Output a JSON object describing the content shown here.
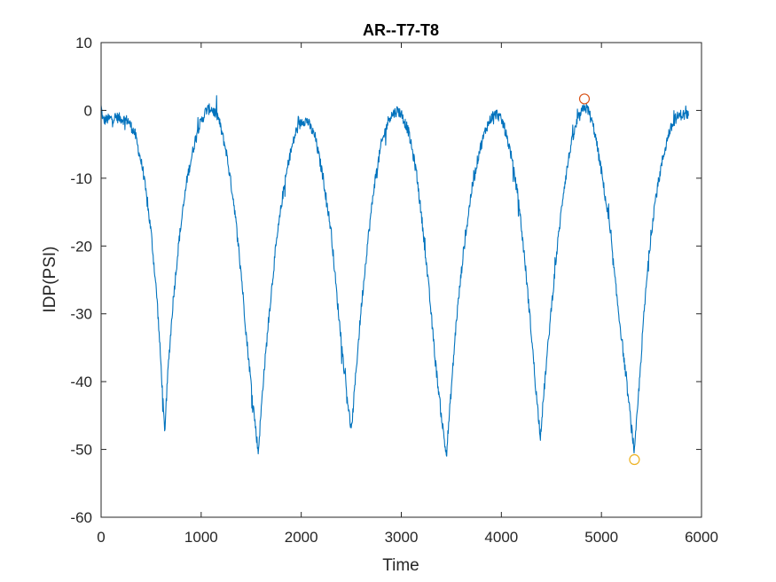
{
  "chart_data": {
    "type": "line",
    "title": "AR--T7-T8",
    "xlabel": "Time",
    "ylabel": "IDP(PSI)",
    "xlim": [
      0,
      6000
    ],
    "ylim": [
      -60,
      10
    ],
    "xticks": [
      0,
      1000,
      2000,
      3000,
      4000,
      5000,
      6000
    ],
    "yticks": [
      10,
      0,
      -10,
      -20,
      -30,
      -40,
      -50,
      -60
    ],
    "xtick_labels": [
      "0",
      "1000",
      "2000",
      "3000",
      "4000",
      "5000",
      "6000"
    ],
    "ytick_labels": [
      "10",
      "0",
      "-10",
      "-20",
      "-30",
      "-40",
      "-50",
      "-60"
    ],
    "grid": false,
    "box": true,
    "series": [
      {
        "color": "#0072BD",
        "keypoints": [
          [
            0,
            0.5
          ],
          [
            20,
            -1.5
          ],
          [
            150,
            -1.0
          ],
          [
            270,
            -1.5
          ],
          [
            340,
            -3.5
          ],
          [
            420,
            -9
          ],
          [
            500,
            -18
          ],
          [
            560,
            -28
          ],
          [
            600,
            -38
          ],
          [
            635,
            -47.5
          ],
          [
            670,
            -38
          ],
          [
            720,
            -28
          ],
          [
            780,
            -19
          ],
          [
            860,
            -10
          ],
          [
            960,
            -3
          ],
          [
            1050,
            0
          ],
          [
            1100,
            0.3
          ],
          [
            1170,
            -1
          ],
          [
            1250,
            -6
          ],
          [
            1330,
            -14
          ],
          [
            1400,
            -24
          ],
          [
            1450,
            -33
          ],
          [
            1510,
            -42
          ],
          [
            1570,
            -50.5
          ],
          [
            1620,
            -40
          ],
          [
            1680,
            -30
          ],
          [
            1740,
            -21
          ],
          [
            1810,
            -13
          ],
          [
            1880,
            -7
          ],
          [
            1950,
            -3
          ],
          [
            2010,
            -1.5
          ],
          [
            2060,
            -1.5
          ],
          [
            2140,
            -4
          ],
          [
            2220,
            -10
          ],
          [
            2300,
            -18
          ],
          [
            2360,
            -28
          ],
          [
            2420,
            -37
          ],
          [
            2500,
            -47.5
          ],
          [
            2550,
            -38
          ],
          [
            2600,
            -29
          ],
          [
            2660,
            -20
          ],
          [
            2730,
            -11
          ],
          [
            2800,
            -5
          ],
          [
            2880,
            -1
          ],
          [
            2960,
            0
          ],
          [
            3000,
            -0.5
          ],
          [
            3070,
            -3
          ],
          [
            3150,
            -9
          ],
          [
            3220,
            -18
          ],
          [
            3280,
            -27
          ],
          [
            3340,
            -37
          ],
          [
            3400,
            -45
          ],
          [
            3450,
            -51
          ],
          [
            3500,
            -41
          ],
          [
            3550,
            -31
          ],
          [
            3620,
            -21
          ],
          [
            3700,
            -12
          ],
          [
            3780,
            -6
          ],
          [
            3850,
            -2.5
          ],
          [
            3910,
            -0.8
          ],
          [
            3960,
            -0.5
          ],
          [
            4020,
            -2
          ],
          [
            4090,
            -6
          ],
          [
            4170,
            -13
          ],
          [
            4240,
            -23
          ],
          [
            4300,
            -33
          ],
          [
            4350,
            -42
          ],
          [
            4390,
            -48
          ],
          [
            4440,
            -39
          ],
          [
            4500,
            -29
          ],
          [
            4560,
            -20
          ],
          [
            4620,
            -12
          ],
          [
            4690,
            -5.5
          ],
          [
            4760,
            -1.5
          ],
          [
            4830,
            0.5
          ],
          [
            4870,
            0
          ],
          [
            4930,
            -3
          ],
          [
            5000,
            -9
          ],
          [
            5080,
            -17
          ],
          [
            5150,
            -27
          ],
          [
            5220,
            -36
          ],
          [
            5280,
            -44
          ],
          [
            5330,
            -50.5
          ],
          [
            5380,
            -40
          ],
          [
            5420,
            -31
          ],
          [
            5470,
            -22
          ],
          [
            5530,
            -14
          ],
          [
            5600,
            -8
          ],
          [
            5670,
            -3.5
          ],
          [
            5740,
            -1.2
          ],
          [
            5800,
            -0.6
          ],
          [
            5870,
            -0.8
          ]
        ],
        "noise_amplitude": 0.8
      }
    ],
    "markers": [
      {
        "x": 4830,
        "y": 1.7,
        "shape": "circle",
        "color": "#D95319"
      },
      {
        "x": 5330,
        "y": -51.5,
        "shape": "circle",
        "color": "#EDB120"
      }
    ]
  }
}
